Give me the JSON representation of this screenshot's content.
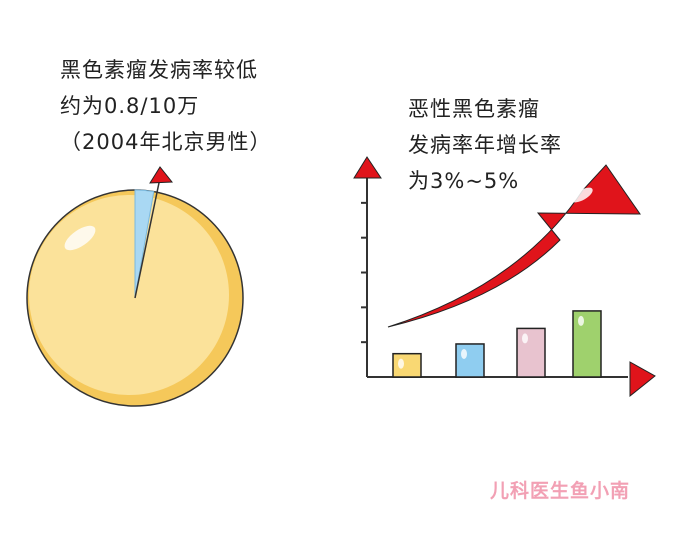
{
  "left_caption": {
    "lines": [
      "黑色素瘤发病率较低",
      "约为0.8/10万",
      "（2004年北京男性）"
    ]
  },
  "right_caption": {
    "lines": [
      "恶性黑色素瘤",
      "发病率年增长率",
      "为3%~5%"
    ]
  },
  "watermark": "儿科医生鱼小南",
  "colors": {
    "pie": "#fbe29a",
    "pie_slice": "#a9d8f3",
    "arrow": "#e0141b",
    "bars": [
      "#f9d873",
      "#8fcdf0",
      "#e8c3cf",
      "#9fd16d"
    ]
  },
  "chart_data": [
    {
      "type": "pie",
      "title": "",
      "slices": [
        {
          "label": "",
          "value": 0.8,
          "color": "#a9d8f3"
        },
        {
          "label": "",
          "value": 99.2,
          "color": "#fbe29a"
        }
      ]
    },
    {
      "type": "bar",
      "title": "",
      "categories": [
        "",
        "",
        "",
        ""
      ],
      "values": [
        1.2,
        1.7,
        2.5,
        3.4
      ],
      "ylim": [
        0,
        6
      ],
      "grid": false,
      "trend_arrow": "up"
    }
  ]
}
